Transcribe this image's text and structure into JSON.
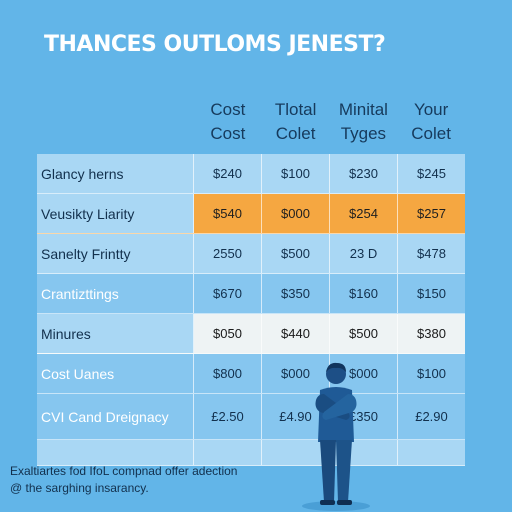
{
  "title": "THANCES OUTLOMS JENEST?",
  "columns": [
    {
      "line1": "Cost",
      "line2": "Cost"
    },
    {
      "line1": "Tlotal",
      "line2": "Colet"
    },
    {
      "line1": "Minital",
      "line2": "Tyges"
    },
    {
      "line1": "Your",
      "line2": "Colet"
    }
  ],
  "rows": [
    {
      "label": "Glancy herns",
      "values": [
        "$240",
        "$100",
        "$230",
        "$245"
      ]
    },
    {
      "label": "Veusikty Liarity",
      "values": [
        "$540",
        "$000",
        "$254",
        "$257"
      ]
    },
    {
      "label": "Sanelty Frintty",
      "values": [
        "2550",
        "$500",
        "23 D",
        "$478"
      ]
    },
    {
      "label": "Crаntizttings",
      "values": [
        "$670",
        "$350",
        "$160",
        "$150"
      ]
    },
    {
      "label": "Minures",
      "values": [
        "$050",
        "$440",
        "$500",
        "$380"
      ]
    },
    {
      "label": "Cost Uanes",
      "values": [
        "$800",
        "$000",
        "$000",
        "$100"
      ]
    },
    {
      "label": "CVI Cand Dreignacy",
      "values": [
        "£2.50",
        "£4.90",
        "£350",
        "£2.90"
      ]
    }
  ],
  "footnote": {
    "line1": "Exaltiartes fod IfoL compnad offer adection",
    "line2": "@ the sarghing insarancy."
  },
  "colors": {
    "background": "#62b5e8",
    "highlight_row": "#f5a741",
    "cream_row": "#eef3f4"
  }
}
